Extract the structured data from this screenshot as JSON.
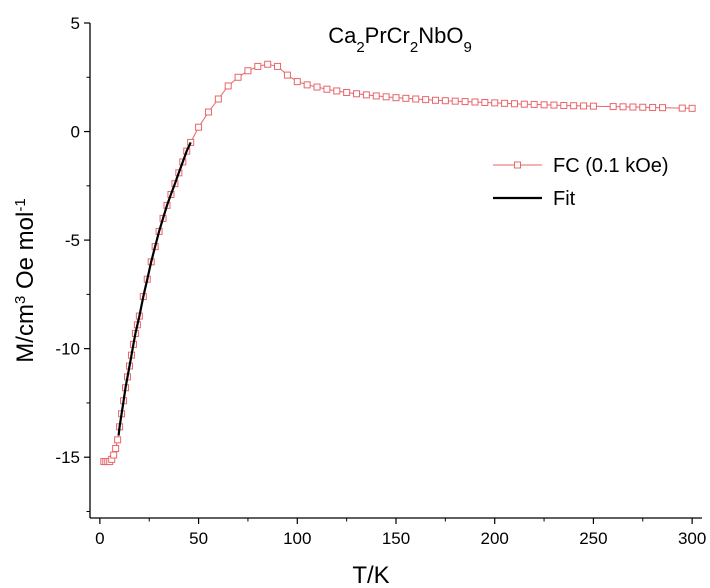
{
  "chart_data": {
    "type": "scatter",
    "title": "Ca2PrCr2NbO9",
    "title_parts": [
      {
        "text": "Ca",
        "sub": false
      },
      {
        "text": "2",
        "sub": true
      },
      {
        "text": "PrCr",
        "sub": false
      },
      {
        "text": "2",
        "sub": true
      },
      {
        "text": "NbO",
        "sub": false
      },
      {
        "text": "9",
        "sub": true
      }
    ],
    "xlabel": "T/K",
    "ylabel": "M/cm3 Oe mol-1",
    "ylabel_parts": [
      {
        "text": "M/cm",
        "sup": false
      },
      {
        "text": "3",
        "sup": true
      },
      {
        "text": " Oe mol",
        "sup": false
      },
      {
        "text": "-1",
        "sup": true
      }
    ],
    "xlim": [
      -5,
      305
    ],
    "ylim": [
      -17.8,
      5
    ],
    "xticks": [
      0,
      50,
      100,
      150,
      200,
      250,
      300
    ],
    "yticks": [
      -15,
      -10,
      -5,
      0,
      5
    ],
    "legend_position": "center-right",
    "colors": {
      "fc": "#e8656a",
      "fit": "#000000"
    },
    "series": [
      {
        "name": "FC (0.1 kOe)",
        "style": "line+open-square",
        "x": [
          2,
          3,
          4,
          5,
          6,
          7,
          8,
          9,
          10,
          11,
          12,
          13,
          14,
          15,
          16,
          17,
          18,
          19,
          20,
          22,
          24,
          26,
          28,
          30,
          32,
          34,
          36,
          38,
          40,
          42,
          44,
          46,
          50,
          55,
          60,
          65,
          70,
          75,
          80,
          85,
          90,
          95,
          100,
          105,
          110,
          115,
          120,
          125,
          130,
          135,
          140,
          145,
          150,
          155,
          160,
          165,
          170,
          175,
          180,
          185,
          190,
          195,
          200,
          205,
          210,
          215,
          220,
          225,
          230,
          235,
          240,
          245,
          250,
          260,
          265,
          270,
          275,
          280,
          285,
          295,
          300
        ],
        "y": [
          -15.2,
          -15.2,
          -15.2,
          -15.2,
          -15.1,
          -14.9,
          -14.6,
          -14.2,
          -13.6,
          -13.0,
          -12.4,
          -11.8,
          -11.3,
          -10.8,
          -10.3,
          -9.8,
          -9.3,
          -8.9,
          -8.5,
          -7.6,
          -6.8,
          -6.0,
          -5.3,
          -4.6,
          -4.0,
          -3.4,
          -2.9,
          -2.4,
          -1.9,
          -1.4,
          -0.9,
          -0.5,
          0.2,
          0.9,
          1.5,
          2.1,
          2.5,
          2.8,
          3.0,
          3.1,
          3.0,
          2.6,
          2.3,
          2.15,
          2.05,
          1.95,
          1.87,
          1.8,
          1.74,
          1.69,
          1.64,
          1.6,
          1.56,
          1.53,
          1.5,
          1.47,
          1.44,
          1.42,
          1.4,
          1.38,
          1.36,
          1.34,
          1.32,
          1.3,
          1.28,
          1.26,
          1.25,
          1.23,
          1.22,
          1.2,
          1.19,
          1.18,
          1.17,
          1.15,
          1.14,
          1.13,
          1.12,
          1.11,
          1.1,
          1.08,
          1.07
        ]
      },
      {
        "name": "Fit",
        "style": "line",
        "x": [
          9.5,
          10,
          11,
          12,
          13,
          14,
          15,
          16,
          17,
          18,
          19,
          20,
          22,
          24,
          26,
          28,
          30,
          32,
          34,
          36,
          38,
          40,
          42,
          44,
          46
        ],
        "y": [
          -14.0,
          -13.6,
          -13.0,
          -12.4,
          -11.8,
          -11.3,
          -10.8,
          -10.3,
          -9.8,
          -9.3,
          -8.9,
          -8.5,
          -7.6,
          -6.8,
          -6.0,
          -5.3,
          -4.6,
          -4.0,
          -3.4,
          -2.9,
          -2.4,
          -1.9,
          -1.4,
          -0.9,
          -0.5
        ]
      }
    ]
  }
}
